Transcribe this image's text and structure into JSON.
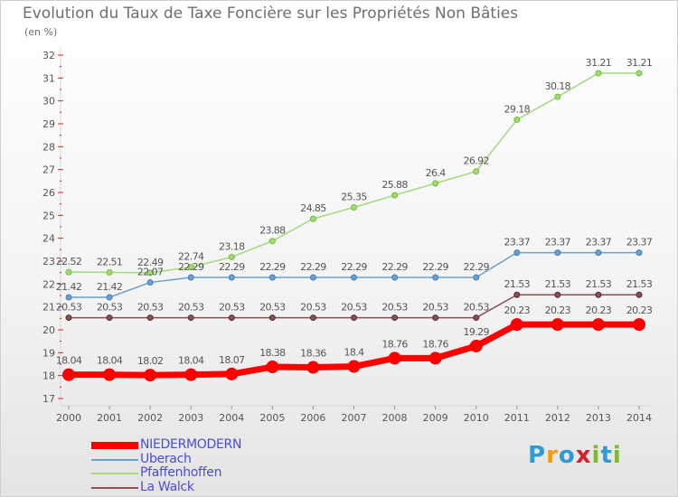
{
  "title": "Evolution du Taux de Taxe Foncière sur les Propriétés Non Bâties",
  "subtitle": "(en %)",
  "brand": {
    "letters": [
      "P",
      "r",
      "o",
      "x",
      "i",
      "t",
      "i"
    ],
    "colors": [
      "#2e9ad6",
      "#f39c12",
      "#2e9ad6",
      "#d91e2a",
      "#7dbb2a",
      "#2e9ad6",
      "#7dbb2a"
    ]
  },
  "chart_data": {
    "type": "line",
    "title": "Evolution du Taux de Taxe Foncière sur les Propriétés Non Bâties",
    "ylabel": "(en %)",
    "xlabel": "",
    "x": [
      "2000",
      "2001",
      "2002",
      "2003",
      "2004",
      "2005",
      "2006",
      "2007",
      "2008",
      "2009",
      "2010",
      "2011",
      "2012",
      "2013",
      "2014"
    ],
    "yticks": [
      17,
      18,
      19,
      20,
      21,
      22,
      23,
      24,
      25,
      26,
      27,
      28,
      29,
      30,
      31,
      32
    ],
    "ylim": [
      17,
      32
    ],
    "grid": false,
    "legend_position": "bottom-left",
    "series": [
      {
        "name": "NIEDERMODERN",
        "color": "#ff0000",
        "labels": [
          "18.04",
          "18.04",
          "18.02",
          "18.04",
          "18.07",
          "18.38",
          "18.36",
          "18.4",
          "18.76",
          "18.76",
          "19.29",
          "20.23",
          "20.23",
          "20.23",
          "20.23"
        ],
        "values": [
          18.04,
          18.04,
          18.02,
          18.04,
          18.07,
          18.38,
          18.36,
          18.4,
          18.76,
          18.76,
          19.29,
          20.23,
          20.23,
          20.23,
          20.23
        ]
      },
      {
        "name": "Uberach",
        "color": "#6aa0cc",
        "labels": [
          "21.42",
          "21.42",
          "22.07",
          "22.29",
          "22.29",
          "22.29",
          "22.29",
          "22.29",
          "22.29",
          "22.29",
          "22.29",
          "23.37",
          "23.37",
          "23.37",
          "23.37"
        ],
        "values": [
          21.42,
          21.42,
          22.07,
          22.29,
          22.29,
          22.29,
          22.29,
          22.29,
          22.29,
          22.29,
          22.29,
          23.37,
          23.37,
          23.37,
          23.37
        ]
      },
      {
        "name": "Pfaffenhoffen",
        "color": "#a3d97a",
        "labels": [
          "22.52",
          "22.51",
          "22.49",
          "22.74",
          "23.18",
          "23.88",
          "24.85",
          "25.35",
          "25.88",
          "26.4",
          "26.92",
          "29.18",
          "30.18",
          "31.21",
          "31.21"
        ],
        "values": [
          22.52,
          22.51,
          22.49,
          22.74,
          23.18,
          23.88,
          24.85,
          25.35,
          25.88,
          26.4,
          26.92,
          29.18,
          30.18,
          31.21,
          31.21
        ]
      },
      {
        "name": "La Walck",
        "color": "#8b4f55",
        "labels": [
          "20.53",
          "20.53",
          "20.53",
          "20.53",
          "20.53",
          "20.53",
          "20.53",
          "20.53",
          "20.53",
          "20.53",
          "20.53",
          "21.53",
          "21.53",
          "21.53",
          "21.53"
        ],
        "values": [
          20.53,
          20.53,
          20.53,
          20.53,
          20.53,
          20.53,
          20.53,
          20.53,
          20.53,
          20.53,
          20.53,
          21.53,
          21.53,
          21.53,
          21.53
        ]
      }
    ]
  }
}
